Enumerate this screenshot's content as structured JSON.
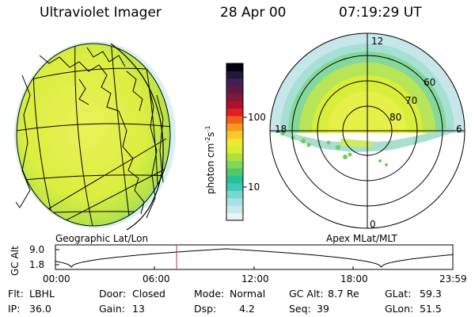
{
  "header": {
    "title": "Ultraviolet Imager",
    "date": "28 Apr 00",
    "time": "07:19:29 UT"
  },
  "panels": {
    "left_label": "Geographic Lat/Lon",
    "right_label": "Apex MLat/MLT"
  },
  "colorbar": {
    "label_main": "photon cm",
    "label_sup1": "-2",
    "label_mid": "s",
    "label_sup2": "-1",
    "ticks": [
      "100",
      "10"
    ],
    "colors": [
      "#eef2f2",
      "#c8e8ee",
      "#a8e0e8",
      "#78d8d0",
      "#40c8b8",
      "#28c098",
      "#50c870",
      "#80d858",
      "#b0e040",
      "#d8ec30",
      "#f0e830",
      "#f8c828",
      "#f89820",
      "#f06018",
      "#e02020",
      "#b01030",
      "#801838",
      "#601848",
      "#402058",
      "#201838",
      "#000010"
    ]
  },
  "polar": {
    "mlt_labels": [
      "12",
      "18",
      "6",
      "0"
    ],
    "lat_labels": [
      "60",
      "70",
      "80"
    ]
  },
  "timeline": {
    "axis_label": "GC Alt",
    "y_ticks": [
      "9.0",
      "1.8"
    ],
    "x_ticks": [
      "00:00",
      "06:00",
      "12:00",
      "18:00",
      "23:59"
    ],
    "current_time_fraction": 0.305
  },
  "info": {
    "flt_label": "Flt:",
    "flt_value": "LBHL",
    "ip_label": "IP:",
    "ip_value": "36.0",
    "door_label": "Door:",
    "door_value": "Closed",
    "gain_label": "Gain:",
    "gain_value": "13",
    "mode_label": "Mode:",
    "mode_value": "Normal",
    "dsp_label": "Dsp:",
    "dsp_value": "4.2",
    "gcalt_label": "GC Alt:",
    "gcalt_value": "8.7 Re",
    "seq_label": "Seq:",
    "seq_value": "39",
    "glat_label": "GLat:",
    "glat_value": "59.3",
    "glon_label": "GLon:",
    "glon_value": "51.5"
  }
}
